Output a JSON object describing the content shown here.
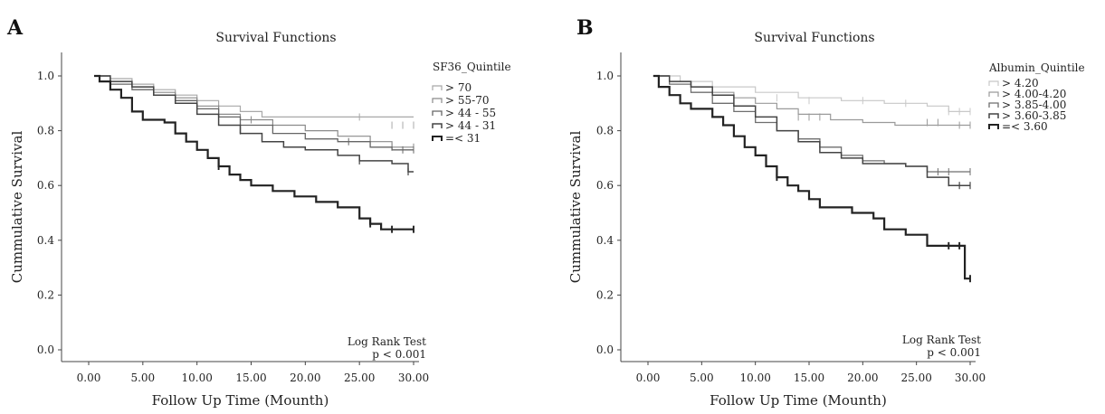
{
  "chart_data": [
    {
      "type": "line",
      "panel": "A",
      "title": "Survival Functions",
      "xlabel": "Follow Up Time (Mounth)",
      "ylabel": "Cummulative Survival",
      "xlim": [
        0,
        30
      ],
      "ylim": [
        0,
        1
      ],
      "x_ticks": [
        "0.00",
        "5.00",
        "10.00",
        "15.00",
        "20.00",
        "25.00",
        "30.00"
      ],
      "y_ticks": [
        "0.0",
        "0.2",
        "0.4",
        "0.6",
        "0.8",
        "1.0"
      ],
      "legend_title": "SF36_Quintile",
      "legend_position": "top-right",
      "annotations": [
        "Log Rank Test",
        "p < 0.001"
      ],
      "series": [
        {
          "name": "> 70",
          "color": "#a8a8a8",
          "width": 1.2,
          "points": [
            [
              0.5,
              1
            ],
            [
              2,
              0.99
            ],
            [
              4,
              0.97
            ],
            [
              6,
              0.95
            ],
            [
              8,
              0.93
            ],
            [
              10,
              0.91
            ],
            [
              12,
              0.89
            ],
            [
              14,
              0.87
            ],
            [
              16,
              0.85
            ],
            [
              30,
              0.85
            ]
          ],
          "censor": [
            [
              25,
              0.85
            ],
            [
              28,
              0.82
            ],
            [
              29,
              0.82
            ],
            [
              30,
              0.82
            ]
          ]
        },
        {
          "name": "> 55-70",
          "color": "#8a8a8a",
          "width": 1.2,
          "points": [
            [
              0.5,
              1
            ],
            [
              2,
              0.98
            ],
            [
              4,
              0.96
            ],
            [
              6,
              0.94
            ],
            [
              8,
              0.92
            ],
            [
              10,
              0.89
            ],
            [
              12,
              0.86
            ],
            [
              14,
              0.84
            ],
            [
              17,
              0.82
            ],
            [
              20,
              0.8
            ],
            [
              23,
              0.78
            ],
            [
              26,
              0.76
            ],
            [
              28,
              0.74
            ],
            [
              30,
              0.74
            ]
          ],
          "censor": [
            [
              12,
              0.88
            ],
            [
              15,
              0.84
            ],
            [
              28,
              0.74
            ],
            [
              30,
              0.74
            ]
          ]
        },
        {
          "name": "> 44 - 55",
          "color": "#666666",
          "width": 1.3,
          "points": [
            [
              0.5,
              1
            ],
            [
              2,
              0.97
            ],
            [
              4,
              0.95
            ],
            [
              6,
              0.93
            ],
            [
              8,
              0.91
            ],
            [
              10,
              0.88
            ],
            [
              12,
              0.85
            ],
            [
              14,
              0.82
            ],
            [
              17,
              0.79
            ],
            [
              20,
              0.77
            ],
            [
              23,
              0.76
            ],
            [
              26,
              0.74
            ],
            [
              28,
              0.73
            ],
            [
              30,
              0.73
            ]
          ],
          "censor": [
            [
              14,
              0.82
            ],
            [
              24,
              0.76
            ],
            [
              29,
              0.73
            ],
            [
              30,
              0.73
            ]
          ]
        },
        {
          "name": "> 44 - 31",
          "color": "#444444",
          "width": 1.5,
          "points": [
            [
              0.5,
              1
            ],
            [
              2,
              0.98
            ],
            [
              4,
              0.96
            ],
            [
              6,
              0.93
            ],
            [
              8,
              0.9
            ],
            [
              10,
              0.86
            ],
            [
              12,
              0.82
            ],
            [
              14,
              0.79
            ],
            [
              16,
              0.76
            ],
            [
              18,
              0.74
            ],
            [
              20,
              0.73
            ],
            [
              23,
              0.71
            ],
            [
              25,
              0.69
            ],
            [
              28,
              0.68
            ],
            [
              29.5,
              0.65
            ],
            [
              30,
              0.65
            ]
          ],
          "censor": [
            [
              14,
              0.8
            ],
            [
              25,
              0.69
            ],
            [
              29.5,
              0.65
            ]
          ]
        },
        {
          "name": "=< 31",
          "color": "#222222",
          "width": 2.2,
          "points": [
            [
              0.5,
              1
            ],
            [
              1,
              0.98
            ],
            [
              2,
              0.95
            ],
            [
              3,
              0.92
            ],
            [
              4,
              0.87
            ],
            [
              5,
              0.84
            ],
            [
              7,
              0.83
            ],
            [
              8,
              0.79
            ],
            [
              9,
              0.76
            ],
            [
              10,
              0.73
            ],
            [
              11,
              0.7
            ],
            [
              12,
              0.67
            ],
            [
              13,
              0.64
            ],
            [
              14,
              0.62
            ],
            [
              15,
              0.6
            ],
            [
              17,
              0.58
            ],
            [
              19,
              0.56
            ],
            [
              21,
              0.54
            ],
            [
              23,
              0.52
            ],
            [
              25,
              0.48
            ],
            [
              26,
              0.46
            ],
            [
              27,
              0.44
            ],
            [
              30,
              0.44
            ]
          ],
          "censor": [
            [
              12,
              0.67
            ],
            [
              26,
              0.46
            ],
            [
              28,
              0.44
            ],
            [
              30,
              0.44
            ]
          ]
        }
      ]
    },
    {
      "type": "line",
      "panel": "B",
      "title": "Survival Functions",
      "xlabel": "Follow Up Time (Mounth)",
      "ylabel": "Cummulative Survival",
      "xlim": [
        0,
        30
      ],
      "ylim": [
        0,
        1
      ],
      "x_ticks": [
        "0.00",
        "5.00",
        "10.00",
        "15.00",
        "20.00",
        "25.00",
        "30.00"
      ],
      "y_ticks": [
        "0.0",
        "0.2",
        "0.4",
        "0.6",
        "0.8",
        "1.0"
      ],
      "legend_title": "Albumin_Quintile",
      "legend_position": "top-right",
      "annotations": [
        "Log Rank Test",
        "p < 0.001"
      ],
      "series": [
        {
          "name": "> 4.20",
          "color": "#c8c8c8",
          "width": 1.2,
          "points": [
            [
              0.5,
              1
            ],
            [
              3,
              0.98
            ],
            [
              6,
              0.96
            ],
            [
              10,
              0.94
            ],
            [
              14,
              0.92
            ],
            [
              18,
              0.91
            ],
            [
              22,
              0.9
            ],
            [
              26,
              0.89
            ],
            [
              28,
              0.87
            ],
            [
              30,
              0.87
            ]
          ],
          "censor": [
            [
              12,
              0.92
            ],
            [
              15,
              0.91
            ],
            [
              20,
              0.91
            ],
            [
              24,
              0.9
            ],
            [
              28,
              0.87
            ],
            [
              29,
              0.87
            ],
            [
              30,
              0.87
            ]
          ]
        },
        {
          "name": "> 4.00-4.20",
          "color": "#9a9a9a",
          "width": 1.2,
          "points": [
            [
              0.5,
              1
            ],
            [
              2,
              0.98
            ],
            [
              4,
              0.96
            ],
            [
              6,
              0.94
            ],
            [
              8,
              0.92
            ],
            [
              10,
              0.9
            ],
            [
              12,
              0.88
            ],
            [
              14,
              0.86
            ],
            [
              17,
              0.84
            ],
            [
              20,
              0.83
            ],
            [
              23,
              0.82
            ],
            [
              30,
              0.82
            ]
          ],
          "censor": [
            [
              14,
              0.85
            ],
            [
              15,
              0.85
            ],
            [
              16,
              0.85
            ],
            [
              26,
              0.83
            ],
            [
              27,
              0.83
            ],
            [
              29,
              0.82
            ],
            [
              30,
              0.82
            ]
          ]
        },
        {
          "name": "> 3.85-4.00",
          "color": "#6e6e6e",
          "width": 1.3,
          "points": [
            [
              0.5,
              1
            ],
            [
              2,
              0.97
            ],
            [
              4,
              0.94
            ],
            [
              6,
              0.9
            ],
            [
              8,
              0.87
            ],
            [
              10,
              0.83
            ],
            [
              12,
              0.8
            ],
            [
              14,
              0.77
            ],
            [
              16,
              0.74
            ],
            [
              18,
              0.71
            ],
            [
              20,
              0.69
            ],
            [
              22,
              0.68
            ],
            [
              24,
              0.67
            ],
            [
              26,
              0.65
            ],
            [
              30,
              0.65
            ]
          ],
          "censor": [
            [
              27,
              0.65
            ],
            [
              28,
              0.65
            ],
            [
              30,
              0.65
            ]
          ]
        },
        {
          "name": "> 3.60-3.85",
          "color": "#444444",
          "width": 1.5,
          "points": [
            [
              0.5,
              1
            ],
            [
              2,
              0.98
            ],
            [
              4,
              0.96
            ],
            [
              6,
              0.93
            ],
            [
              8,
              0.89
            ],
            [
              10,
              0.85
            ],
            [
              12,
              0.8
            ],
            [
              14,
              0.76
            ],
            [
              16,
              0.72
            ],
            [
              18,
              0.7
            ],
            [
              20,
              0.68
            ],
            [
              22,
              0.68
            ],
            [
              24,
              0.67
            ],
            [
              26,
              0.63
            ],
            [
              28,
              0.6
            ],
            [
              30,
              0.6
            ]
          ],
          "censor": [
            [
              28,
              0.61
            ],
            [
              29,
              0.6
            ],
            [
              30,
              0.6
            ]
          ]
        },
        {
          "name": "=< 3.60",
          "color": "#222222",
          "width": 2.2,
          "points": [
            [
              0.5,
              1
            ],
            [
              1,
              0.96
            ],
            [
              2,
              0.93
            ],
            [
              3,
              0.9
            ],
            [
              4,
              0.88
            ],
            [
              6,
              0.85
            ],
            [
              7,
              0.82
            ],
            [
              8,
              0.78
            ],
            [
              9,
              0.74
            ],
            [
              10,
              0.71
            ],
            [
              11,
              0.67
            ],
            [
              12,
              0.63
            ],
            [
              13,
              0.6
            ],
            [
              14,
              0.58
            ],
            [
              15,
              0.55
            ],
            [
              16,
              0.52
            ],
            [
              19,
              0.5
            ],
            [
              21,
              0.48
            ],
            [
              22,
              0.44
            ],
            [
              24,
              0.42
            ],
            [
              26,
              0.38
            ],
            [
              29.5,
              0.38
            ],
            [
              29.5,
              0.26
            ],
            [
              30,
              0.26
            ]
          ],
          "censor": [
            [
              12,
              0.63
            ],
            [
              28,
              0.38
            ],
            [
              29,
              0.38
            ],
            [
              30,
              0.26
            ]
          ]
        }
      ]
    }
  ]
}
